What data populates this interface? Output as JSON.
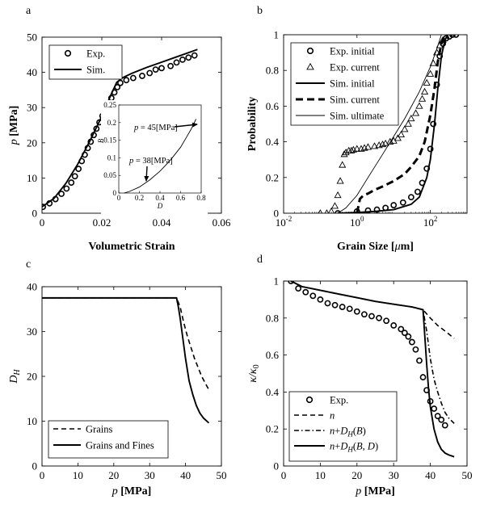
{
  "chart_data": [
    {
      "panel_label": "a",
      "type": "scatter",
      "xlabel": "Volumetric Strain",
      "ylabel": "p [MPa]",
      "xlim": [
        0,
        0.06
      ],
      "ylim": [
        0,
        50
      ],
      "xticks": [
        "0",
        "0.02",
        "0.04",
        "0.06"
      ],
      "yticks": [
        "0",
        "10",
        "20",
        "30",
        "40",
        "50"
      ],
      "legend_position": "top-left",
      "series": [
        {
          "name": "Exp.",
          "style": "markers-circle",
          "x": [
            0.0003,
            0.0025,
            0.0045,
            0.0065,
            0.0082,
            0.0098,
            0.011,
            0.0122,
            0.0133,
            0.0143,
            0.0153,
            0.0163,
            0.0173,
            0.0182,
            0.0192,
            0.0202,
            0.0212,
            0.0222,
            0.0232,
            0.0242,
            0.0252,
            0.0262,
            0.0282,
            0.0305,
            0.0335,
            0.036,
            0.038,
            0.04,
            0.043,
            0.045,
            0.047,
            0.049,
            0.051
          ],
          "y": [
            1.8,
            2.8,
            4.0,
            5.5,
            7.0,
            8.7,
            10.5,
            12.6,
            14.8,
            16.6,
            18.5,
            20.3,
            22.2,
            24.0,
            25.8,
            27.6,
            29.2,
            31.0,
            32.7,
            34.3,
            35.8,
            37.0,
            37.8,
            38.4,
            39.0,
            39.8,
            40.8,
            41.2,
            41.8,
            42.8,
            43.6,
            44.2,
            44.8
          ]
        },
        {
          "name": "Sim.",
          "style": "line-solid",
          "x": [
            0,
            0.004,
            0.008,
            0.012,
            0.016,
            0.02,
            0.023,
            0.025,
            0.027,
            0.03,
            0.035,
            0.04,
            0.045,
            0.05,
            0.052
          ],
          "y": [
            1.8,
            4.2,
            8.5,
            14.0,
            20.5,
            27.5,
            33.5,
            37.2,
            38.5,
            39.7,
            41.4,
            42.9,
            44.4,
            45.9,
            46.5
          ]
        }
      ],
      "inset": {
        "xlabel": "D",
        "ylabel": "B",
        "xlim": [
          0,
          0.8
        ],
        "ylim": [
          0,
          0.25
        ],
        "xticks": [
          "0",
          "0.2",
          "0.4",
          "0.6",
          "0.8"
        ],
        "yticks": [
          "0",
          "0.05",
          "0.1",
          "0.15",
          "0.2",
          "0.25"
        ],
        "curve": {
          "x": [
            0.05,
            0.1,
            0.2,
            0.3,
            0.4,
            0.5,
            0.6,
            0.65,
            0.7,
            0.75
          ],
          "y": [
            0.0,
            0.004,
            0.017,
            0.037,
            0.062,
            0.093,
            0.13,
            0.155,
            0.18,
            0.21
          ]
        },
        "annotations": [
          "p = 45[MPa]",
          "p = 38[MPa]"
        ]
      }
    },
    {
      "panel_label": "b",
      "type": "line",
      "xlabel": "Grain Size [μm]",
      "ylabel": "Probability",
      "xscale": "log",
      "xlim": [
        0.01,
        1000
      ],
      "ylim": [
        0,
        1
      ],
      "xticks": [
        "10-2",
        "100",
        "102"
      ],
      "yticks": [
        "0",
        "0.2",
        "0.4",
        "0.6",
        "0.8",
        "1"
      ],
      "legend_position": "top-left",
      "series": [
        {
          "name": "Exp. initial",
          "style": "markers-circle",
          "x": [
            0.3,
            1.0,
            2.0,
            3.5,
            6,
            10,
            18,
            30,
            45,
            60,
            80,
            100,
            120,
            150,
            180,
            220,
            270,
            330,
            400,
            500
          ],
          "y": [
            0.0,
            0.01,
            0.015,
            0.02,
            0.03,
            0.045,
            0.06,
            0.09,
            0.12,
            0.17,
            0.25,
            0.36,
            0.5,
            0.72,
            0.88,
            0.95,
            0.98,
            0.99,
            1.0,
            1.0
          ]
        },
        {
          "name": "Exp. current",
          "style": "markers-triangle",
          "x": [
            0.1,
            0.15,
            0.2,
            0.25,
            0.3,
            0.35,
            0.4,
            0.45,
            0.5,
            0.6,
            0.7,
            0.8,
            1.0,
            1.3,
            1.6,
            2.0,
            3,
            4,
            5,
            6,
            8,
            10,
            13,
            16,
            20,
            25,
            30,
            40,
            50,
            60,
            70,
            80,
            100,
            120,
            150,
            180,
            220
          ],
          "y": [
            0.0,
            0.0,
            0.01,
            0.04,
            0.1,
            0.18,
            0.27,
            0.33,
            0.34,
            0.35,
            0.35,
            0.355,
            0.36,
            0.36,
            0.365,
            0.37,
            0.375,
            0.38,
            0.385,
            0.39,
            0.4,
            0.405,
            0.42,
            0.44,
            0.47,
            0.5,
            0.53,
            0.56,
            0.6,
            0.64,
            0.68,
            0.73,
            0.78,
            0.84,
            0.9,
            0.94,
            0.97
          ]
        },
        {
          "name": "Sim. initial",
          "style": "line-solid",
          "x": [
            0.3,
            1,
            3,
            10,
            30,
            50,
            80,
            100,
            130,
            160,
            200,
            250,
            300
          ],
          "y": [
            0.0,
            0.004,
            0.01,
            0.02,
            0.05,
            0.09,
            0.2,
            0.3,
            0.5,
            0.7,
            0.88,
            0.97,
            1.0
          ]
        },
        {
          "name": "Sim. current",
          "style": "line-dashed-thick",
          "x": [
            1,
            1.2,
            1.5,
            2,
            3,
            5,
            10,
            20,
            30,
            50,
            70,
            100,
            130,
            160,
            200,
            250
          ],
          "y": [
            0.0,
            0.08,
            0.1,
            0.11,
            0.13,
            0.15,
            0.18,
            0.22,
            0.26,
            0.32,
            0.4,
            0.55,
            0.7,
            0.85,
            0.95,
            1.0
          ]
        },
        {
          "name": "Sim. ultimate",
          "style": "line-thin",
          "x": [
            0.3,
            0.5,
            1,
            2,
            5,
            10,
            20,
            50,
            100,
            150,
            200
          ],
          "y": [
            0.0,
            0.03,
            0.1,
            0.2,
            0.33,
            0.43,
            0.53,
            0.68,
            0.82,
            0.92,
            1.0
          ]
        }
      ]
    },
    {
      "panel_label": "c",
      "type": "line",
      "xlabel": "p [MPa]",
      "ylabel": "D_H",
      "xlim": [
        0,
        50
      ],
      "ylim": [
        0,
        40
      ],
      "xticks": [
        "0",
        "10",
        "20",
        "30",
        "40",
        "50"
      ],
      "yticks": [
        "0",
        "10",
        "20",
        "30",
        "40"
      ],
      "legend_position": "bottom-left",
      "series": [
        {
          "name": "Grains",
          "style": "line-dashed",
          "x": [
            0,
            37.5,
            38.5,
            39.5,
            40.5,
            41.5,
            42.5,
            43.5,
            44.5,
            45.5,
            46.5
          ],
          "y": [
            37.5,
            37.5,
            35.5,
            32,
            29,
            26.5,
            24,
            22,
            20,
            18.5,
            17
          ]
        },
        {
          "name": "Grains and Fines",
          "style": "line-solid",
          "x": [
            0,
            37.5,
            38,
            38.5,
            39,
            39.5,
            40,
            40.5,
            41,
            42,
            43,
            44,
            45,
            46.5
          ],
          "y": [
            37.5,
            37.5,
            35.5,
            33,
            30,
            27,
            24,
            21.5,
            19,
            16,
            13.5,
            11.8,
            10.7,
            9.6
          ]
        }
      ]
    },
    {
      "panel_label": "d",
      "type": "line",
      "xlabel": "p [MPa]",
      "ylabel": "κ/κ0",
      "xlim": [
        0,
        50
      ],
      "ylim": [
        0,
        1
      ],
      "xticks": [
        "0",
        "10",
        "20",
        "30",
        "40",
        "50"
      ],
      "yticks": [
        "0",
        "0.2",
        "0.4",
        "0.6",
        "0.8",
        "1"
      ],
      "legend_position": "bottom-left",
      "series": [
        {
          "name": "Exp.",
          "style": "markers-circle",
          "x": [
            2,
            4,
            6,
            8,
            10,
            12,
            14,
            16,
            18,
            20,
            22,
            24,
            26,
            28,
            30,
            32,
            33,
            34,
            35,
            36,
            37,
            38,
            39,
            40,
            41,
            42,
            43,
            44
          ],
          "y": [
            1.0,
            0.96,
            0.94,
            0.92,
            0.9,
            0.88,
            0.87,
            0.86,
            0.85,
            0.835,
            0.82,
            0.81,
            0.8,
            0.785,
            0.76,
            0.74,
            0.72,
            0.7,
            0.67,
            0.63,
            0.57,
            0.48,
            0.41,
            0.35,
            0.31,
            0.27,
            0.25,
            0.22
          ]
        },
        {
          "name": "n",
          "style": "line-dashed",
          "x": [
            2,
            5,
            10,
            15,
            20,
            25,
            30,
            35,
            38,
            40,
            42,
            44,
            46.5
          ],
          "y": [
            1.0,
            0.97,
            0.95,
            0.93,
            0.91,
            0.89,
            0.875,
            0.86,
            0.845,
            0.8,
            0.76,
            0.73,
            0.69
          ]
        },
        {
          "name": "n+DH(B)",
          "style": "line-dashdot",
          "x": [
            2,
            5,
            10,
            15,
            20,
            25,
            30,
            35,
            38,
            39,
            40,
            41,
            42,
            43,
            44,
            45,
            46.5
          ],
          "y": [
            1.0,
            0.97,
            0.95,
            0.93,
            0.91,
            0.89,
            0.875,
            0.86,
            0.845,
            0.73,
            0.58,
            0.47,
            0.4,
            0.34,
            0.29,
            0.26,
            0.23
          ]
        },
        {
          "name": "n+DH(B,D)",
          "style": "line-solid",
          "x": [
            2,
            5,
            10,
            15,
            20,
            25,
            30,
            35,
            38,
            38.5,
            39,
            39.5,
            40,
            41,
            42,
            43,
            44,
            45,
            46.5
          ],
          "y": [
            1.0,
            0.97,
            0.95,
            0.93,
            0.91,
            0.89,
            0.875,
            0.86,
            0.845,
            0.7,
            0.55,
            0.42,
            0.32,
            0.2,
            0.13,
            0.09,
            0.07,
            0.06,
            0.05
          ]
        }
      ]
    }
  ]
}
